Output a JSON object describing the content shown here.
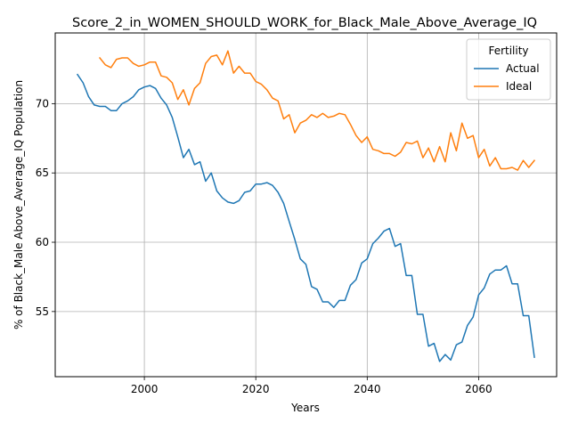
{
  "chart_data": {
    "type": "line",
    "title": "Score_2_in_WOMEN_SHOULD_WORK_for_Black_Male_Above_Average_IQ",
    "xlabel": "Years",
    "ylabel": "% of Black_Male Above_Average_IQ Population",
    "xlim": [
      1984,
      2074
    ],
    "ylim": [
      50.3,
      75.1
    ],
    "xticks": [
      2000,
      2020,
      2040,
      2060
    ],
    "yticks": [
      55,
      60,
      65,
      70
    ],
    "grid": true,
    "legend": {
      "title": "Fertility",
      "position": "top-right"
    },
    "series": [
      {
        "name": "Actual",
        "color": "#1f77b4",
        "x": [
          1988,
          1989,
          1990,
          1991,
          1992,
          1993,
          1994,
          1995,
          1996,
          1997,
          1998,
          1999,
          2000,
          2001,
          2002,
          2003,
          2004,
          2005,
          2006,
          2007,
          2008,
          2009,
          2010,
          2011,
          2012,
          2013,
          2014,
          2015,
          2016,
          2017,
          2018,
          2019,
          2020,
          2021,
          2022,
          2023,
          2024,
          2025,
          2026,
          2027,
          2028,
          2029,
          2030,
          2031,
          2032,
          2033,
          2034,
          2035,
          2036,
          2037,
          2038,
          2039,
          2040,
          2041,
          2042,
          2043,
          2044,
          2045,
          2046,
          2047,
          2048,
          2049,
          2050,
          2051,
          2052,
          2053,
          2054,
          2055,
          2056,
          2057,
          2058,
          2059,
          2060,
          2061,
          2062,
          2063,
          2064,
          2065,
          2066,
          2067,
          2068,
          2069,
          2070
        ],
        "values": [
          72.1,
          71.5,
          70.5,
          69.9,
          69.8,
          69.8,
          69.5,
          69.5,
          70.0,
          70.2,
          70.5,
          71.0,
          71.2,
          71.3,
          71.1,
          70.4,
          69.9,
          69.0,
          67.6,
          66.1,
          66.7,
          65.6,
          65.8,
          64.4,
          65.0,
          63.7,
          63.2,
          62.9,
          62.8,
          63.0,
          63.6,
          63.7,
          64.2,
          64.2,
          64.3,
          64.1,
          63.6,
          62.8,
          61.5,
          60.2,
          58.8,
          58.4,
          56.8,
          56.6,
          55.7,
          55.7,
          55.3,
          55.8,
          55.8,
          56.9,
          57.3,
          58.5,
          58.8,
          59.9,
          60.3,
          60.8,
          61.0,
          59.7,
          59.9,
          57.6,
          57.6,
          54.8,
          54.8,
          52.5,
          52.7,
          51.4,
          51.9,
          51.5,
          52.6,
          52.8,
          54.0,
          54.6,
          56.2,
          56.7,
          57.7,
          58.0,
          58.0,
          58.3,
          57.0,
          57.0,
          54.7,
          54.7,
          51.7
        ]
      },
      {
        "name": "Ideal",
        "color": "#ff7f0e",
        "x": [
          1992,
          1993,
          1994,
          1995,
          1996,
          1997,
          1998,
          1999,
          2000,
          2001,
          2002,
          2003,
          2004,
          2005,
          2006,
          2007,
          2008,
          2009,
          2010,
          2011,
          2012,
          2013,
          2014,
          2015,
          2016,
          2017,
          2018,
          2019,
          2020,
          2021,
          2022,
          2023,
          2024,
          2025,
          2026,
          2027,
          2028,
          2029,
          2030,
          2031,
          2032,
          2033,
          2034,
          2035,
          2036,
          2037,
          2038,
          2039,
          2040,
          2041,
          2042,
          2043,
          2044,
          2045,
          2046,
          2047,
          2048,
          2049,
          2050,
          2051,
          2052,
          2053,
          2054,
          2055,
          2056,
          2057,
          2058,
          2059,
          2060,
          2061,
          2062,
          2063,
          2064,
          2065,
          2066,
          2067,
          2068,
          2069,
          2070
        ],
        "values": [
          73.3,
          72.8,
          72.6,
          73.2,
          73.3,
          73.3,
          72.9,
          72.7,
          72.8,
          73.0,
          73.0,
          72.0,
          71.9,
          71.5,
          70.3,
          71.0,
          69.9,
          71.1,
          71.5,
          72.9,
          73.4,
          73.5,
          72.8,
          73.8,
          72.2,
          72.7,
          72.2,
          72.2,
          71.6,
          71.4,
          71.0,
          70.4,
          70.2,
          68.9,
          69.2,
          67.9,
          68.6,
          68.8,
          69.2,
          69.0,
          69.3,
          69.0,
          69.1,
          69.3,
          69.2,
          68.5,
          67.7,
          67.2,
          67.6,
          66.7,
          66.6,
          66.4,
          66.4,
          66.2,
          66.5,
          67.2,
          67.1,
          67.3,
          66.1,
          66.8,
          65.8,
          66.9,
          65.8,
          67.9,
          66.6,
          68.6,
          67.5,
          67.7,
          66.1,
          66.7,
          65.5,
          66.1,
          65.3,
          65.3,
          65.4,
          65.2,
          65.9,
          65.4,
          65.9
        ]
      }
    ]
  }
}
